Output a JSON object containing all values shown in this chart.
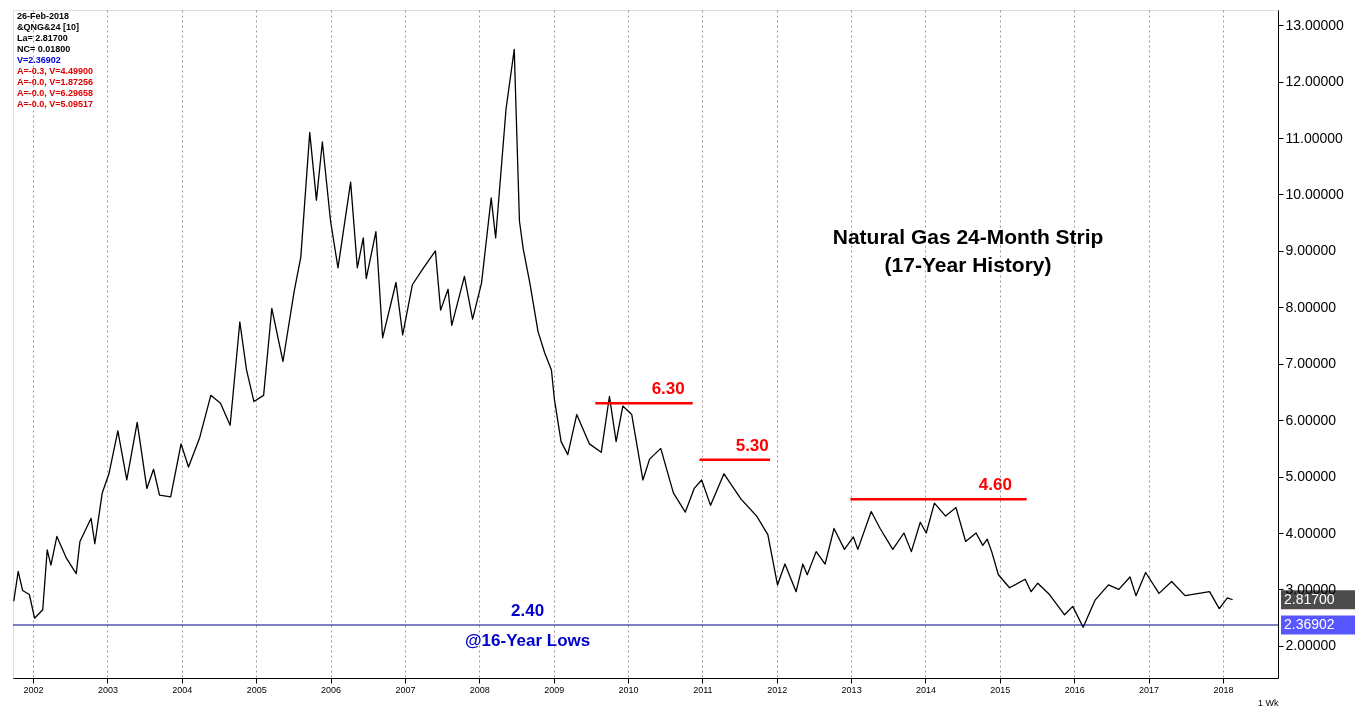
{
  "chart_data": {
    "type": "line",
    "title": "Natural Gas 24-Month Strip",
    "subtitle": "(17-Year History)",
    "xlabel": "1 Wk",
    "x": [
      2001.74,
      2001.8,
      2001.86,
      2001.95,
      2002.02,
      2002.13,
      2002.19,
      2002.24,
      2002.32,
      2002.45,
      2002.58,
      2002.63,
      2002.78,
      2002.83,
      2002.93,
      2003.02,
      2003.14,
      2003.26,
      2003.4,
      2003.53,
      2003.62,
      2003.7,
      2003.85,
      2003.99,
      2004.09,
      2004.24,
      2004.39,
      2004.52,
      2004.65,
      2004.78,
      2004.87,
      2004.97,
      2005.1,
      2005.21,
      2005.36,
      2005.51,
      2005.6,
      2005.72,
      2005.81,
      2005.89,
      2006.0,
      2006.1,
      2006.27,
      2006.36,
      2006.44,
      2006.48,
      2006.61,
      2006.7,
      2006.88,
      2006.97,
      2007.1,
      2007.25,
      2007.41,
      2007.48,
      2007.58,
      2007.63,
      2007.8,
      2007.91,
      2008.03,
      2008.16,
      2008.22,
      2008.36,
      2008.47,
      2008.54,
      2008.59,
      2008.68,
      2008.79,
      2008.88,
      2008.97,
      2009.01,
      2009.1,
      2009.19,
      2009.31,
      2009.48,
      2009.64,
      2009.75,
      2009.84,
      2009.93,
      2010.05,
      2010.2,
      2010.29,
      2010.44,
      2010.61,
      2010.77,
      2010.89,
      2010.99,
      2011.11,
      2011.29,
      2011.52,
      2011.73,
      2011.88,
      2012.01,
      2012.11,
      2012.26,
      2012.35,
      2012.41,
      2012.53,
      2012.65,
      2012.77,
      2012.91,
      2013.03,
      2013.09,
      2013.27,
      2013.39,
      2013.56,
      2013.71,
      2013.81,
      2013.93,
      2014.01,
      2014.12,
      2014.27,
      2014.41,
      2014.54,
      2014.68,
      2014.77,
      2014.83,
      2014.89,
      2014.98,
      2015.13,
      2015.34,
      2015.42,
      2015.51,
      2015.66,
      2015.87,
      2015.98,
      2016.12,
      2016.28,
      2016.46,
      2016.6,
      2016.75,
      2016.83,
      2016.96,
      2017.14,
      2017.31,
      2017.49,
      2017.82,
      2017.95,
      2018.06,
      2018.13
    ],
    "series": [
      {
        "color": "#000000",
        "values": [
          2.79,
          3.32,
          2.98,
          2.91,
          2.49,
          2.64,
          3.7,
          3.43,
          3.94,
          3.55,
          3.28,
          3.85,
          4.26,
          3.81,
          4.71,
          5.05,
          5.81,
          4.94,
          5.96,
          4.79,
          5.13,
          4.67,
          4.64,
          5.58,
          5.17,
          5.69,
          6.44,
          6.3,
          5.91,
          7.74,
          6.89,
          6.33,
          6.44,
          7.98,
          7.04,
          8.28,
          8.89,
          11.1,
          9.9,
          10.93,
          9.53,
          8.7,
          10.22,
          8.7,
          9.23,
          8.51,
          9.34,
          7.46,
          8.44,
          7.51,
          8.4,
          8.7,
          9.0,
          7.95,
          8.32,
          7.68,
          8.55,
          7.79,
          8.43,
          9.94,
          9.23,
          11.52,
          12.57,
          9.53,
          9.04,
          8.43,
          7.57,
          7.19,
          6.89,
          6.37,
          5.62,
          5.39,
          6.1,
          5.58,
          5.43,
          6.42,
          5.62,
          6.25,
          6.1,
          4.94,
          5.31,
          5.5,
          4.71,
          4.37,
          4.79,
          4.94,
          4.49,
          5.05,
          4.6,
          4.3,
          3.97,
          3.08,
          3.45,
          2.96,
          3.45,
          3.26,
          3.67,
          3.45,
          4.08,
          3.71,
          3.93,
          3.71,
          4.38,
          4.08,
          3.71,
          4.0,
          3.67,
          4.19,
          4.0,
          4.53,
          4.3,
          4.45,
          3.85,
          4.0,
          3.78,
          3.89,
          3.67,
          3.26,
          3.03,
          3.18,
          2.96,
          3.11,
          2.92,
          2.55,
          2.7,
          2.33,
          2.81,
          3.08,
          3.0,
          3.22,
          2.89,
          3.3,
          2.93,
          3.14,
          2.89,
          2.96,
          2.66,
          2.85,
          2.817
        ]
      },
      {
        "type": "line",
        "color": "#ff0000",
        "x": [
          2009.56,
          2010.87
        ],
        "values": [
          6.3,
          6.3
        ]
      },
      {
        "type": "line",
        "color": "#ff0000",
        "x": [
          2010.96,
          2011.91
        ],
        "values": [
          5.3,
          5.3
        ]
      },
      {
        "type": "line",
        "color": "#ff0000",
        "x": [
          2012.99,
          2015.36
        ],
        "values": [
          4.6,
          4.6
        ]
      }
    ],
    "xlim": [
      2001.73,
      2018.74
    ],
    "ylim": [
      1.43,
      13.27
    ],
    "xticks": [
      2002,
      2003,
      2004,
      2005,
      2006,
      2007,
      2008,
      2009,
      2010,
      2011,
      2012,
      2013,
      2014,
      2015,
      2016,
      2017,
      2018
    ],
    "yticks": [
      {
        "value": 2,
        "label": "2.00000"
      },
      {
        "value": 3,
        "label": "3.00000"
      },
      {
        "value": 4,
        "label": "4.00000"
      },
      {
        "value": 5,
        "label": "5.00000"
      },
      {
        "value": 6,
        "label": "6.00000"
      },
      {
        "value": 7,
        "label": "7.00000"
      },
      {
        "value": 8,
        "label": "8.00000"
      },
      {
        "value": 9,
        "label": "9.00000"
      },
      {
        "value": 10,
        "label": "10.00000"
      },
      {
        "value": 11,
        "label": "11.00000"
      },
      {
        "value": 12,
        "label": "12.00000"
      },
      {
        "value": 13,
        "label": "13.00000"
      }
    ],
    "grid": "x",
    "ref_lines": [
      {
        "axis": "y",
        "value": 2.36902,
        "label": "2.36902",
        "color": "#000080"
      }
    ],
    "annotations": [
      "26-Feb-2018",
      "&QNG&24 [10]",
      "La= 2.81700",
      "NC= 0.01800",
      "V=2.36902",
      "A=-0.3, V=4.49900",
      "A=-0.0, V=1.87256",
      "A=-0.0, V=6.29658",
      "A=-0.0, V=5.09517",
      {
        "text": "6.30",
        "x": 2010.54,
        "y": 6.3
      },
      {
        "text": "5.30",
        "x": 2011.67,
        "y": 5.3
      },
      {
        "text": "4.60",
        "x": 2014.94,
        "y": 4.6
      },
      {
        "text": "2.40",
        "x": 2008.65,
        "y": 2.36902
      },
      {
        "text": "@16-Year Lows",
        "x": 2008.65,
        "y": 2.36902
      },
      "2.81700"
    ]
  }
}
